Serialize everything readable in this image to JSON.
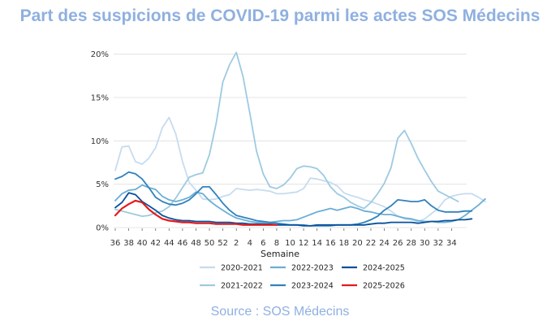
{
  "title": "Part des suspicions de COVID-19 parmi les actes SOS Médecins",
  "source": "Source : SOS Médecins",
  "chart_data": {
    "type": "line",
    "title": "Part des suspicions de COVID-19 parmi les actes SOS Médecins",
    "xlabel": "Semaine",
    "ylabel": "",
    "x_ticks": [
      "36",
      "38",
      "40",
      "42",
      "44",
      "46",
      "48",
      "50",
      "52",
      "2",
      "4",
      "6",
      "8",
      "10",
      "12",
      "14",
      "16",
      "18",
      "20",
      "22",
      "24",
      "26",
      "28",
      "30",
      "32",
      "34"
    ],
    "y_ticks": [
      "0%",
      "5%",
      "10%",
      "15%",
      "20%"
    ],
    "y_tick_values": [
      0,
      5,
      10,
      15,
      20
    ],
    "ylim": [
      0,
      21
    ],
    "x_count": 53,
    "grid": "horizontal",
    "legend_position": "bottom",
    "series": [
      {
        "name": "2020-2021",
        "color": "#c6dcef",
        "values": [
          6.6,
          9.3,
          9.4,
          7.6,
          7.3,
          8.0,
          9.2,
          11.5,
          12.7,
          10.8,
          7.6,
          5.2,
          4.3,
          3.3,
          3.2,
          3.3,
          3.6,
          3.8,
          4.5,
          4.4,
          4.3,
          4.4,
          4.3,
          4.2,
          3.9,
          3.9,
          4.0,
          4.1,
          4.5,
          5.7,
          5.6,
          5.4,
          5.2,
          4.8,
          4.0,
          3.7,
          3.5,
          3.2,
          3.0,
          2.7,
          2.4,
          1.9,
          1.3,
          1.0,
          0.9,
          0.7,
          1.0,
          1.6,
          2.2,
          3.2,
          3.6,
          3.8,
          3.9,
          3.9,
          3.5,
          3.0
        ]
      },
      {
        "name": "2021-2022",
        "color": "#9ecae1",
        "values": [
          2.1,
          1.9,
          1.7,
          1.5,
          1.3,
          1.4,
          1.7,
          1.9,
          2.4,
          3.4,
          4.6,
          5.8,
          6.1,
          6.3,
          8.4,
          12.0,
          16.8,
          18.8,
          20.2,
          17.4,
          13.2,
          8.8,
          6.2,
          4.7,
          4.5,
          4.9,
          5.7,
          6.8,
          7.1,
          7.0,
          6.8,
          6.0,
          4.7,
          3.9,
          3.5,
          2.9,
          2.5,
          2.2,
          2.9,
          3.9,
          5.1,
          6.9,
          10.3,
          11.2,
          9.7,
          8.0,
          6.6,
          5.3,
          4.2,
          3.8,
          3.4,
          3.0
        ]
      },
      {
        "name": "2022-2023",
        "color": "#6baed6",
        "values": [
          3.1,
          3.9,
          4.3,
          4.4,
          4.9,
          4.6,
          4.4,
          3.6,
          3.2,
          3.0,
          3.2,
          3.5,
          4.1,
          3.9,
          3.1,
          2.5,
          2.0,
          1.5,
          1.1,
          0.9,
          0.7,
          0.6,
          0.6,
          0.6,
          0.7,
          0.8,
          0.8,
          0.9,
          1.2,
          1.5,
          1.8,
          2.0,
          2.2,
          2.0,
          2.2,
          2.4,
          2.2,
          1.9,
          1.8,
          1.6,
          1.5,
          1.5,
          1.3,
          1.1,
          1.0,
          0.8,
          0.7,
          0.7,
          0.6,
          0.6,
          0.7,
          0.9,
          1.4,
          2.0,
          2.6,
          3.3
        ]
      },
      {
        "name": "2023-2024",
        "color": "#3182bd",
        "values": [
          5.6,
          5.9,
          6.4,
          6.2,
          5.6,
          4.6,
          3.5,
          3.0,
          2.7,
          2.6,
          2.8,
          3.2,
          3.9,
          4.7,
          4.7,
          3.8,
          2.8,
          2.0,
          1.4,
          1.2,
          1.0,
          0.8,
          0.7,
          0.6,
          0.5,
          0.4,
          0.3,
          0.3,
          0.3,
          0.2,
          0.2,
          0.2,
          0.2,
          0.3,
          0.3,
          0.3,
          0.4,
          0.6,
          0.9,
          1.3,
          2.0,
          2.5,
          3.2,
          3.1,
          3.0,
          3.0,
          3.2,
          2.5,
          2.0,
          1.8,
          1.8,
          1.8,
          1.9,
          1.9
        ]
      },
      {
        "name": "2024-2025",
        "color": "#08519c",
        "values": [
          2.3,
          2.9,
          4.0,
          3.8,
          3.0,
          2.5,
          2.0,
          1.4,
          1.1,
          0.9,
          0.8,
          0.8,
          0.7,
          0.7,
          0.7,
          0.6,
          0.6,
          0.6,
          0.5,
          0.5,
          0.4,
          0.4,
          0.4,
          0.4,
          0.3,
          0.3,
          0.3,
          0.3,
          0.2,
          0.2,
          0.3,
          0.3,
          0.3,
          0.3,
          0.3,
          0.3,
          0.3,
          0.3,
          0.4,
          0.5,
          0.5,
          0.6,
          0.6,
          0.6,
          0.6,
          0.5,
          0.6,
          0.7,
          0.7,
          0.8,
          0.8,
          0.9,
          0.9,
          1.0
        ]
      },
      {
        "name": "2025-2026",
        "color": "#e41a1c",
        "values": [
          1.4,
          2.2,
          2.7,
          3.1,
          2.9,
          2.1,
          1.5,
          1.0,
          0.8,
          0.7,
          0.6,
          0.6,
          0.5,
          0.5,
          0.5,
          0.4,
          0.4,
          0.4,
          0.4,
          0.3,
          0.3,
          0.3,
          0.3,
          0.3,
          0.3
        ]
      }
    ]
  }
}
